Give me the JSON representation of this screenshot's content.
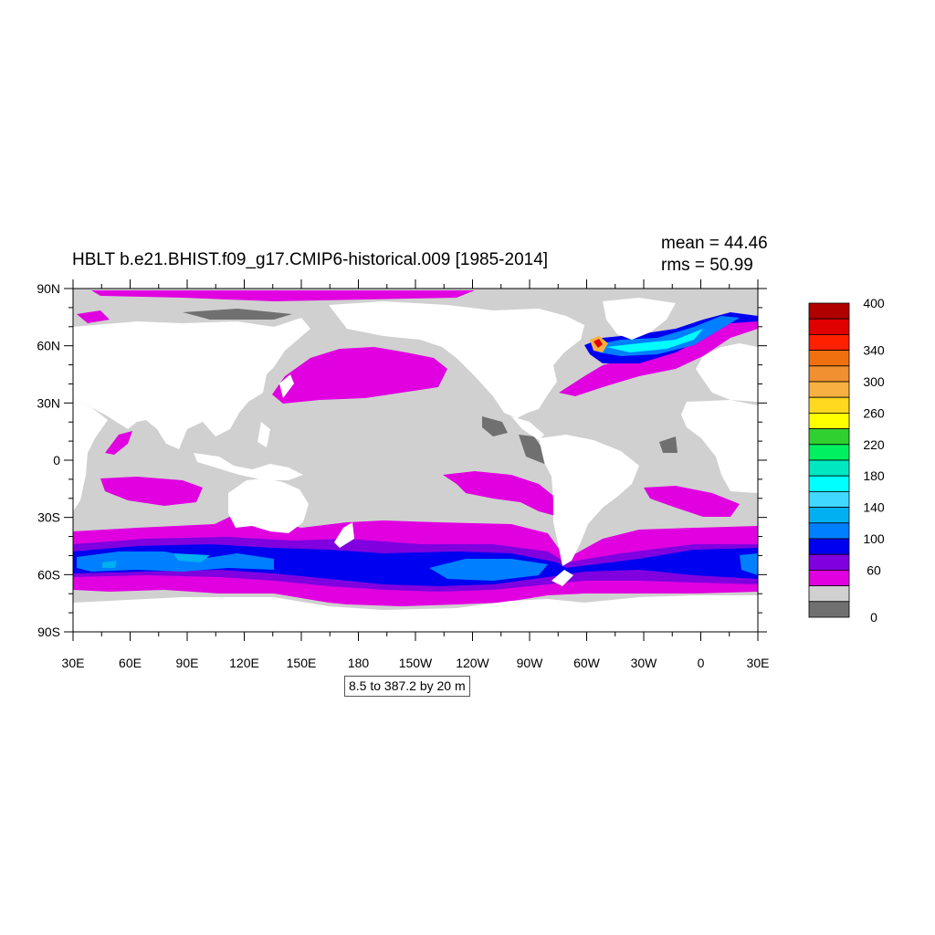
{
  "header": {
    "title": "HBLT b.e21.BHIST.f09_g17.CMIP6-historical.009 [1985-2014]",
    "mean": "mean = 44.46",
    "rms": "rms = 50.99"
  },
  "contour_info": "8.5 to 387.2 by 20 m",
  "axes": {
    "lat_labels": [
      "90N",
      "60N",
      "30N",
      "0",
      "30S",
      "60S",
      "90S"
    ],
    "lon_labels": [
      "30E",
      "60E",
      "90E",
      "120E",
      "150E",
      "180",
      "150W",
      "120W",
      "90W",
      "60W",
      "30W",
      "0",
      "30E"
    ]
  },
  "colorbar": {
    "levels_labeled": [
      "400",
      "340",
      "300",
      "260",
      "220",
      "180",
      "140",
      "100",
      "60",
      "0"
    ],
    "colors_top_to_bottom": [
      "#b00000",
      "#e00000",
      "#ff2000",
      "#f07010",
      "#f09030",
      "#f8b040",
      "#ffd820",
      "#ffff00",
      "#30d030",
      "#00f060",
      "#00e8c0",
      "#00ffff",
      "#40d8ff",
      "#00b0f0",
      "#0080ff",
      "#0000f0",
      "#8000e0",
      "#e000e0",
      "#d0d0d0",
      "#707070"
    ]
  },
  "colors": {
    "land": "#ffffff",
    "low": "#d0d0d0",
    "lowest": "#707070",
    "magenta": "#e000e0",
    "purple": "#8000e0",
    "blue": "#0000f0",
    "lightblue": "#0080ff",
    "cyan": "#00b0f0"
  }
}
